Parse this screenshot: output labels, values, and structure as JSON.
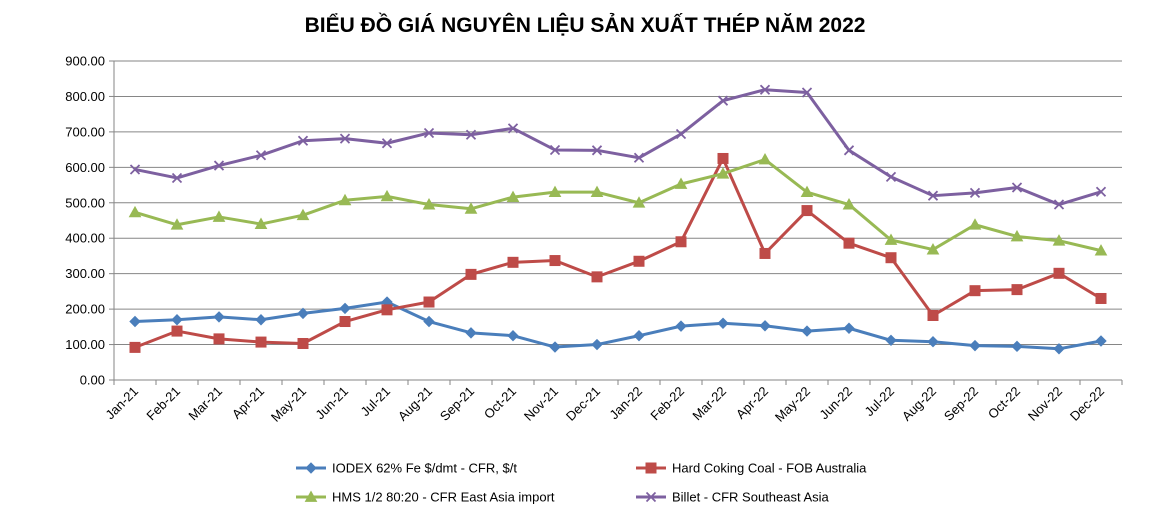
{
  "chart_data": {
    "type": "line",
    "title": "BIỂU ĐỒ GIÁ NGUYÊN LIỆU SẢN XUẤT THÉP NĂM 2022",
    "xlabel": "",
    "ylabel": "",
    "ylim": [
      0,
      900
    ],
    "yticks": [
      "0.00",
      "100.00",
      "200.00",
      "300.00",
      "400.00",
      "500.00",
      "600.00",
      "700.00",
      "800.00",
      "900.00"
    ],
    "grid": "horizontal",
    "legend_position": "bottom",
    "categories": [
      "Jan-21",
      "Feb-21",
      "Mar-21",
      "Apr-21",
      "May-21",
      "Jun-21",
      "Jul-21",
      "Aug-21",
      "Sep-21",
      "Oct-21",
      "Nov-21",
      "Dec-21",
      "Jan-22",
      "Feb-22",
      "Mar-22",
      "Apr-22",
      "May-22",
      "Jun-22",
      "Jul-22",
      "Aug-22",
      "Sep-22",
      "Oct-22",
      "Nov-22",
      "Dec-22"
    ],
    "series": [
      {
        "name": "IODEX 62% Fe $/dmt - CFR, $/t",
        "color": "#4a7ebb",
        "marker": "diamond",
        "values": [
          165,
          170,
          178,
          170,
          188,
          202,
          220,
          165,
          133,
          125,
          93,
          100,
          125,
          152,
          160,
          153,
          138,
          146,
          112,
          108,
          97,
          95,
          88,
          110
        ]
      },
      {
        "name": "Hard Coking Coal - FOB Australia",
        "color": "#be4b48",
        "marker": "square",
        "values": [
          92,
          138,
          116,
          107,
          103,
          165,
          198,
          220,
          298,
          332,
          337,
          291,
          335,
          390,
          625,
          357,
          478,
          386,
          345,
          182,
          252,
          255,
          301,
          230
        ]
      },
      {
        "name": "HMS 1/2 80:20 - CFR East Asia import",
        "color": "#98b954",
        "marker": "triangle",
        "values": [
          473,
          438,
          460,
          440,
          465,
          507,
          518,
          495,
          483,
          516,
          530,
          530,
          500,
          553,
          582,
          622,
          530,
          495,
          395,
          368,
          438,
          405,
          393,
          365
        ]
      },
      {
        "name": "Billet - CFR Southeast Asia",
        "color": "#7d60a0",
        "marker": "x",
        "values": [
          594,
          570,
          605,
          634,
          675,
          681,
          668,
          697,
          692,
          710,
          649,
          648,
          627,
          694,
          788,
          819,
          811,
          648,
          573,
          520,
          528,
          543,
          495,
          531
        ]
      }
    ]
  }
}
